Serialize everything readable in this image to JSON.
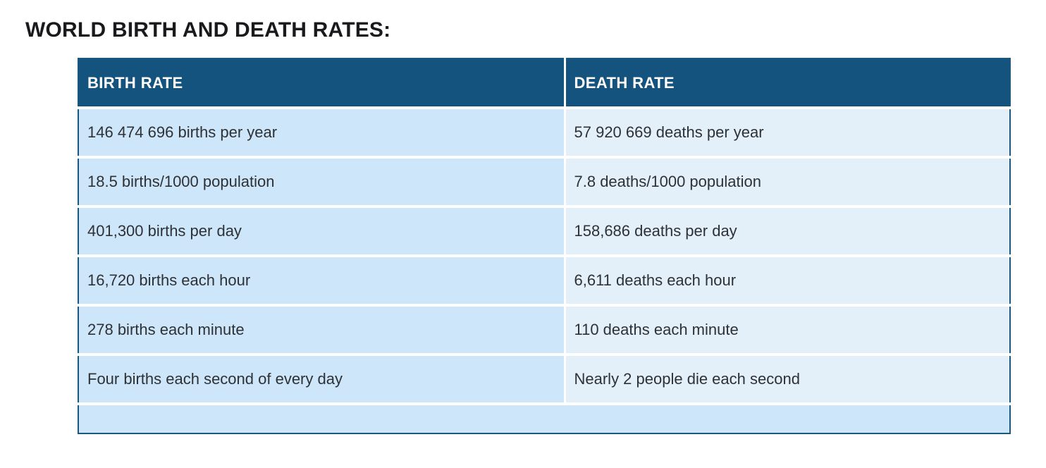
{
  "page": {
    "title": "WORLD BIRTH AND DEATH RATES:"
  },
  "chart_data": {
    "type": "table",
    "title": "WORLD BIRTH AND DEATH RATES:",
    "columns": [
      "BIRTH RATE",
      "DEATH RATE"
    ],
    "rows": [
      [
        "146 474 696 births per year",
        "57 920 669 deaths per year"
      ],
      [
        "18.5 births/1000 population",
        "7.8 deaths/1000 population"
      ],
      [
        "401,300 births per day",
        "158,686 deaths per day"
      ],
      [
        "16,720 births each hour",
        "6,611 deaths each hour"
      ],
      [
        "278 births each minute",
        "110 deaths each minute"
      ],
      [
        "Four births each second of every day",
        "Nearly 2 people die each second"
      ]
    ],
    "layout": {
      "legend": "none",
      "grid": "off",
      "footer_row": "empty full-width band"
    }
  },
  "colors": {
    "header_bg": "#14537D",
    "birth_cell_bg": "#CEE6F9",
    "death_cell_bg": "#E3F0FA",
    "footer_bg": "#CEE6F9",
    "outer_border": "#1B577F",
    "divider": "#FFFFFF",
    "header_text": "#FFFFFF",
    "cell_text": "#2E3135",
    "title_text": "#1A1A1C"
  }
}
